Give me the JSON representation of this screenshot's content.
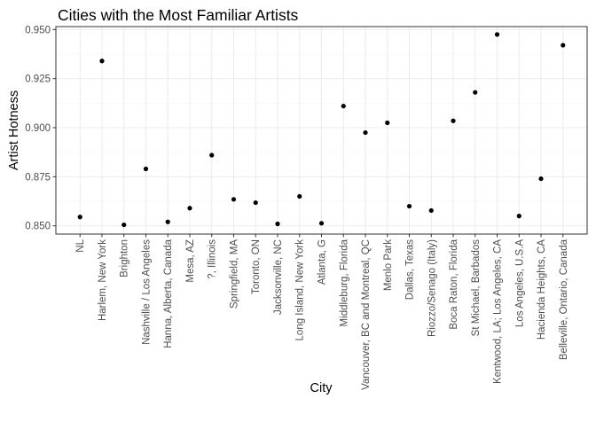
{
  "chart_data": {
    "type": "scatter",
    "title": "Cities with the Most Familiar Artists",
    "xlabel": "City",
    "ylabel": "Artist Hotness",
    "ylim": [
      0.8458,
      0.9515
    ],
    "yticks": [
      "0.850",
      "0.875",
      "0.900",
      "0.925",
      "0.950"
    ],
    "ytick_values": [
      0.85,
      0.875,
      0.9,
      0.925,
      0.95
    ],
    "grid": true,
    "point_color": "#000000",
    "categories": [
      "NL",
      "Harlem, New York",
      "Brighton",
      "Nashville / Los Angeles",
      "Hanna, Alberta, Canada",
      "Mesa, AZ",
      "?, Illinois",
      "Springfield, MA",
      "Toronto, ON",
      "Jacksonville, NC",
      "Long Island, New York",
      "Atlanta, G",
      "Middleburg, Florida",
      "Vancouver, BC and Montreal, QC",
      "Menlo Park",
      "Dallas, Texas",
      "Riozzo/Senago (Italy)",
      "Boca Raton, Florida",
      "St Michael, Barbados",
      "Kentwood, LA; Los Angeles, CA",
      "Los Angeles, U.S.A",
      "Hacienda Heights, CA",
      "Belleville, Ontario, Canada"
    ],
    "values": [
      0.8545,
      0.934,
      0.8505,
      0.879,
      0.852,
      0.859,
      0.886,
      0.8635,
      0.8618,
      0.851,
      0.865,
      0.8513,
      0.911,
      0.8975,
      0.9025,
      0.86,
      0.8578,
      0.9035,
      0.918,
      0.9475,
      0.855,
      0.874,
      0.942
    ]
  }
}
